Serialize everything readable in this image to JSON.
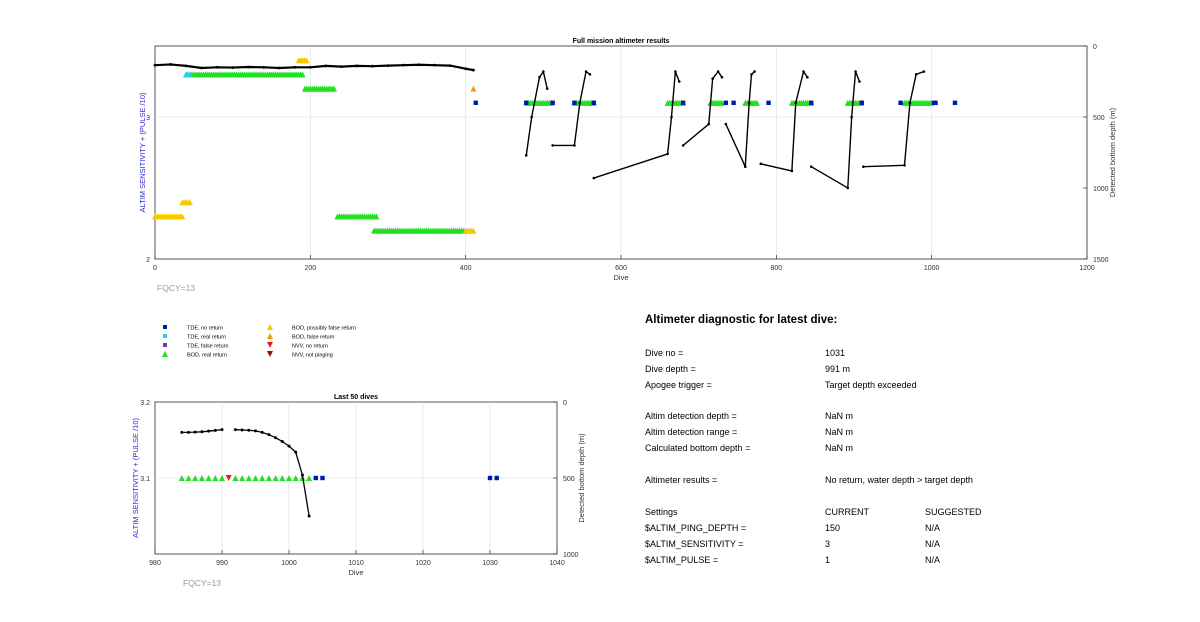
{
  "colors": {
    "tde_no_return": "#0018b0",
    "tde_real_return": "#22d3e8",
    "tde_false_return": "#6a38b8",
    "bod_real_return": "#22e022",
    "bod_possibly_false": "#f5c800",
    "bod_false_return": "#f59a00",
    "nvv_no_return": "#e02020",
    "nvv_not_pinging": "#8a1010",
    "left_axis": "#2a2ad0",
    "depth_line": "#000000"
  },
  "legend": [
    {
      "label": "TDE, no return",
      "marker": "square",
      "color_key": "tde_no_return"
    },
    {
      "label": "BOD, possibly false return",
      "marker": "triangle-up",
      "color_key": "bod_possibly_false"
    },
    {
      "label": "TDE, real return",
      "marker": "square",
      "color_key": "tde_real_return"
    },
    {
      "label": "BOD, false return",
      "marker": "triangle-up",
      "color_key": "bod_false_return"
    },
    {
      "label": "TDE, false return",
      "marker": "square",
      "color_key": "tde_false_return"
    },
    {
      "label": "NVV, no return",
      "marker": "triangle-down",
      "color_key": "nvv_no_return"
    },
    {
      "label": "BOD, real return",
      "marker": "triangle-up",
      "color_key": "bod_real_return"
    },
    {
      "label": "NVV, not pinging",
      "marker": "triangle-down",
      "color_key": "nvv_not_pinging"
    }
  ],
  "chart_data": [
    {
      "type": "scatter",
      "title": "Full mission altimeter results",
      "xlabel": "Dive",
      "ylabel": "ALTIM SENSITIVITY + (PULSE /10)",
      "y2label": "Detected bottom depth (m)",
      "xlim": [
        0,
        1200
      ],
      "ylim": [
        2,
        3.5
      ],
      "y2lim": [
        1500,
        0
      ],
      "xticks": [
        0,
        200,
        400,
        600,
        800,
        1000,
        1200
      ],
      "yticks": [
        2,
        3
      ],
      "y2ticks": [
        0,
        500,
        1000,
        1500
      ],
      "grid": true,
      "note": "FQCY=13",
      "marker_series": [
        {
          "name": "BOD, real return",
          "color_key": "bod_real_return",
          "y": 3.3,
          "x_ranges": [
            [
              40,
              190
            ]
          ]
        },
        {
          "name": "BOD, real return",
          "color_key": "bod_real_return",
          "y": 3.2,
          "x_ranges": [
            [
              193,
              232
            ]
          ]
        },
        {
          "name": "BOD, real return",
          "color_key": "bod_real_return",
          "y": 3.1,
          "x_ranges": [
            [
              478,
              512
            ],
            [
              540,
              565
            ],
            [
              660,
              680
            ],
            [
              715,
              730
            ],
            [
              760,
              775
            ],
            [
              820,
              845
            ],
            [
              892,
              910
            ],
            [
              965,
              1000
            ]
          ]
        },
        {
          "name": "BOD, real return",
          "color_key": "bod_real_return",
          "y": 2.3,
          "x_ranges": [
            [
              235,
              285
            ]
          ]
        },
        {
          "name": "BOD, real return",
          "color_key": "bod_real_return",
          "y": 2.2,
          "x_ranges": [
            [
              282,
              400
            ]
          ]
        },
        {
          "name": "BOD, possibly false return",
          "color_key": "bod_possibly_false",
          "y": 3.4,
          "x_ranges": [
            [
              185,
              195
            ]
          ]
        },
        {
          "name": "BOD, possibly false return",
          "color_key": "bod_possibly_false",
          "y": 2.4,
          "x_ranges": [
            [
              35,
              45
            ]
          ]
        },
        {
          "name": "BOD, possibly false return",
          "color_key": "bod_possibly_false",
          "y": 2.3,
          "x_ranges": [
            [
              0,
              35
            ]
          ]
        },
        {
          "name": "BOD, possibly false return",
          "color_key": "bod_possibly_false",
          "y": 2.2,
          "x_ranges": [
            [
              400,
              412
            ]
          ]
        },
        {
          "name": "BOD, false return",
          "color_key": "bod_false_return",
          "y": 3.2,
          "x_ranges": [
            [
              410,
              412
            ]
          ]
        },
        {
          "name": "TDE, real return",
          "color_key": "tde_real_return",
          "y": 3.3,
          "x_ranges": [
            [
              40,
              45
            ]
          ]
        },
        {
          "name": "TDE, no return",
          "color_key": "tde_no_return",
          "y": 3.1,
          "x": [
            413,
            478,
            512,
            540,
            565,
            680,
            735,
            745,
            790,
            845,
            910,
            960,
            1003,
            1005,
            1030
          ]
        }
      ],
      "depth_series": [
        {
          "name": "bottom depth",
          "x": [
            0,
            20,
            40,
            60,
            80,
            100,
            120,
            140,
            160,
            180,
            200,
            220,
            240,
            260,
            280,
            300,
            320,
            340,
            360,
            380,
            400,
            410
          ],
          "y": [
            135,
            130,
            140,
            155,
            150,
            152,
            148,
            150,
            155,
            150,
            150,
            140,
            145,
            140,
            142,
            138,
            135,
            132,
            135,
            138,
            160,
            170
          ]
        },
        {
          "name": "peaks",
          "x": [
            478,
            485,
            495,
            500,
            505,
            512,
            540,
            547,
            555,
            560,
            565,
            660,
            665,
            670,
            675,
            680,
            713,
            718,
            725,
            730,
            735,
            760,
            765,
            768,
            772,
            780,
            820,
            825,
            835,
            840,
            845,
            892,
            897,
            902,
            907,
            912,
            965,
            972,
            980,
            990,
            1000
          ],
          "y": [
            770,
            500,
            220,
            180,
            300,
            700,
            700,
            400,
            180,
            200,
            930,
            760,
            500,
            180,
            250,
            700,
            550,
            230,
            180,
            220,
            550,
            850,
            400,
            200,
            180,
            830,
            880,
            400,
            180,
            220,
            850,
            1000,
            500,
            180,
            250,
            850,
            840,
            400,
            200,
            180,
            760
          ]
        }
      ]
    },
    {
      "type": "scatter",
      "title": "Last 50 dives",
      "xlabel": "Dive",
      "ylabel": "ALTIM SENSITIVITY + (PULSE /10)",
      "y2label": "Detected bottom depth (m)",
      "xlim": [
        980,
        1040
      ],
      "ylim": [
        3.0,
        3.2
      ],
      "y2lim": [
        1000,
        0
      ],
      "xticks": [
        980,
        990,
        1000,
        1010,
        1020,
        1030,
        1040
      ],
      "yticks": [
        3.1,
        3.2
      ],
      "y2ticks": [
        0,
        500,
        1000
      ],
      "grid": true,
      "note": "FQCY=13",
      "markers": [
        {
          "name": "BOD, real return",
          "color_key": "bod_real_return",
          "y": 3.1,
          "x": [
            984,
            985,
            986,
            987,
            988,
            989,
            990,
            992,
            993,
            994,
            995,
            996,
            997,
            998,
            999,
            1000,
            1001,
            1002,
            1003
          ]
        },
        {
          "name": "NVV, no return",
          "color_key": "nvv_no_return",
          "y": 3.1,
          "x": [
            991
          ]
        },
        {
          "name": "TDE, no return",
          "color_key": "tde_no_return",
          "y": 3.1,
          "x": [
            1004,
            1005,
            1030,
            1031
          ]
        }
      ],
      "depth_series": [
        {
          "name": "bottom depth",
          "x": [
            984,
            985,
            986,
            987,
            988,
            989,
            990
          ],
          "y": [
            200,
            200,
            198,
            196,
            192,
            187,
            182
          ]
        },
        {
          "name": "bottom depth",
          "x": [
            992,
            993,
            994,
            995,
            996,
            997,
            998,
            999,
            1000,
            1001,
            1002,
            1003
          ],
          "y": [
            182,
            184,
            186,
            190,
            200,
            215,
            235,
            260,
            290,
            330,
            480,
            750
          ]
        }
      ]
    }
  ],
  "diagnostic": {
    "title": "Altimeter diagnostic for latest dive:",
    "rows": [
      {
        "label": "Dive no =",
        "value": "1031"
      },
      {
        "label": "Dive depth =",
        "value": "991 m"
      },
      {
        "label": "Apogee trigger =",
        "value": "Target depth exceeded"
      },
      {
        "label": "Altim detection depth =",
        "value": "NaN m"
      },
      {
        "label": "Altim detection range =",
        "value": "NaN m"
      },
      {
        "label": "Calculated bottom depth =",
        "value": "NaN m"
      },
      {
        "label": "Altimeter results =",
        "value": "No return, water depth > target depth"
      }
    ],
    "settings_header": {
      "label": "Settings",
      "current": "CURRENT",
      "suggested": "SUGGESTED"
    },
    "settings": [
      {
        "label": "$ALTIM_PING_DEPTH =",
        "current": "150",
        "suggested": "N/A"
      },
      {
        "label": "$ALTIM_SENSITIVITY =",
        "current": "3",
        "suggested": "N/A"
      },
      {
        "label": "$ALTIM_PULSE =",
        "current": "1",
        "suggested": "N/A"
      }
    ]
  }
}
